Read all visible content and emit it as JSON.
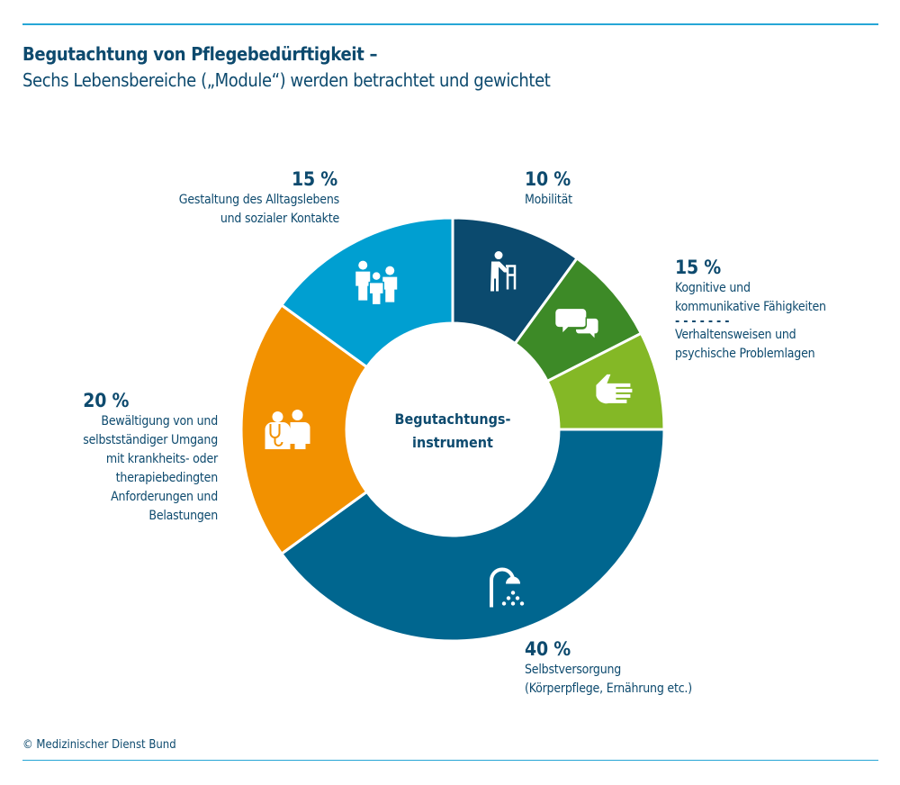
{
  "title": "Begutachtung von Pflegebedürftigkeit –",
  "subtitle": "Sechs Lebensbereiche („Module“) werden betrachtet und gewichtet",
  "copyright": "© Medizinischer Dienst Bund",
  "chart_data": {
    "type": "pie",
    "donut": true,
    "center_label": [
      "Begutachtungs-",
      "instrument"
    ],
    "slices": [
      {
        "value": 10,
        "pct_label": "10 %",
        "label": [
          "Mobilität"
        ],
        "color": "#0b4a6e",
        "icon": "walker-icon"
      },
      {
        "value": 15,
        "pct_label": "15 %",
        "label": [
          "Kognitive und",
          "kommunikative Fähigkeiten"
        ],
        "label2": [
          "Verhaltensweisen und",
          "psychische Problemlagen"
        ],
        "separator": "- - - - - - -",
        "sub": [
          {
            "name": "Kognitive und kommunikative Fähigkeiten",
            "color": "#3d8a27",
            "icon": "speech-bubbles-icon"
          },
          {
            "name": "Verhaltensweisen und psychische Problemlagen",
            "color": "#84b826",
            "icon": "hand-icon"
          }
        ]
      },
      {
        "value": 40,
        "pct_label": "40 %",
        "label": [
          "Selbstversorgung",
          "(Körperpflege, Ernährung etc.)"
        ],
        "color": "#00668f",
        "icon": "shower-icon"
      },
      {
        "value": 20,
        "pct_label": "20 %",
        "label": [
          "Bewältigung von und",
          "selbstständiger Umgang",
          "mit krankheits- oder",
          "therapiebedingten",
          "Anforderungen und",
          "Belastungen"
        ],
        "color": "#f29100",
        "icon": "doctor-patient-icon"
      },
      {
        "value": 15,
        "pct_label": "15 %",
        "label": [
          "Gestaltung des Alltagslebens",
          "und sozialer Kontakte"
        ],
        "color": "#009fd1",
        "icon": "people-group-icon"
      }
    ],
    "legend": "none"
  }
}
